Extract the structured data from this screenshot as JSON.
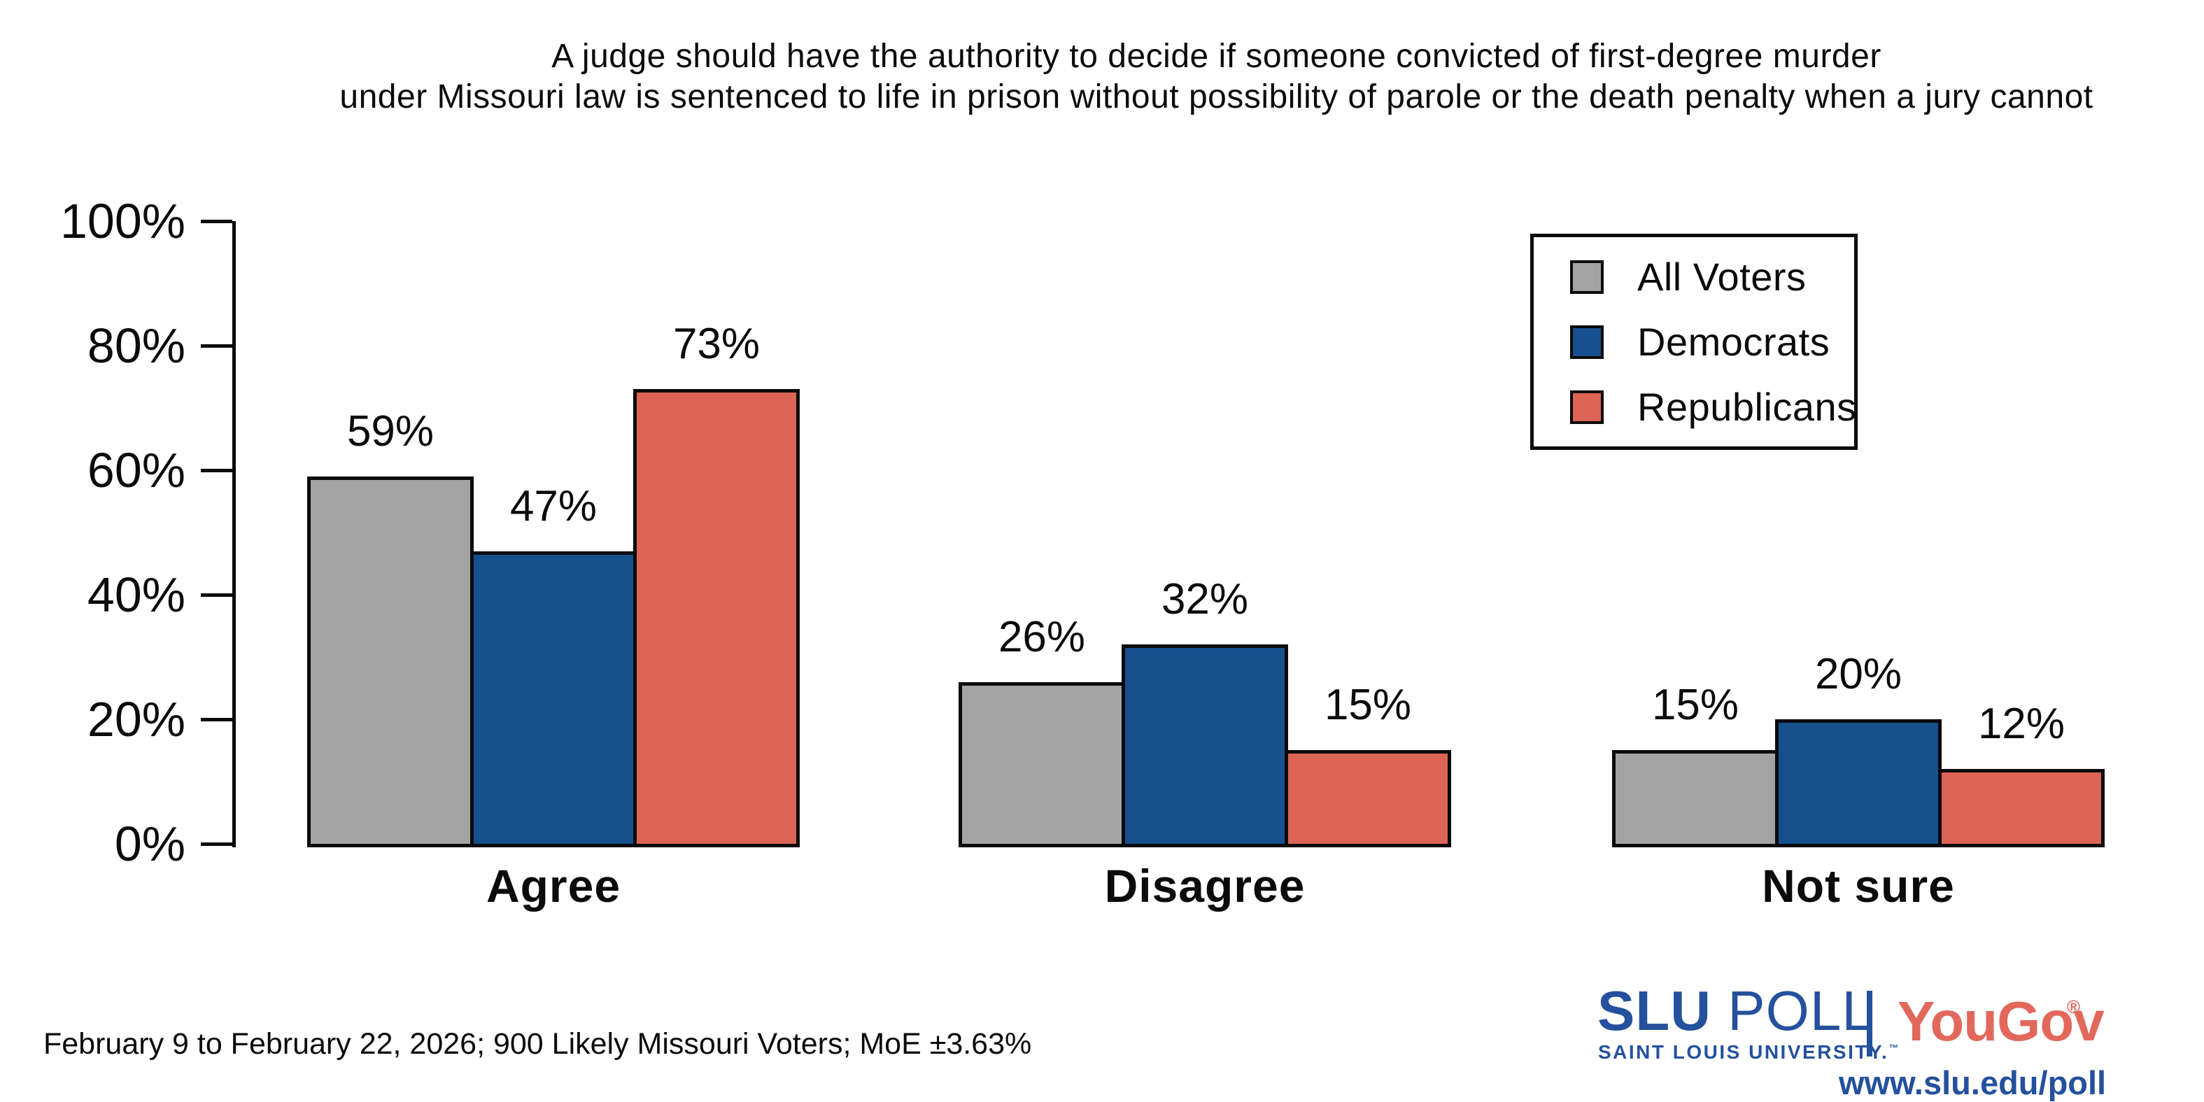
{
  "title": {
    "line1": "A judge should have the authority to decide if someone convicted of first-degree murder",
    "line2": "under Missouri law is sentenced to life in prison without possibility of parole or the death penalty when a jury cannot"
  },
  "chart_data": {
    "type": "bar",
    "title": "A judge should have the authority to decide if someone convicted of first-degree murder under Missouri law is sentenced to life in prison without possibility of parole or the death penalty when a jury cannot",
    "categories": [
      "Agree",
      "Disagree",
      "Not sure"
    ],
    "series": [
      {
        "name": "All Voters",
        "color": "#a3a3a3",
        "values": [
          59,
          26,
          15
        ]
      },
      {
        "name": "Democrats",
        "color": "#17508f",
        "values": [
          47,
          32,
          20
        ]
      },
      {
        "name": "Republicans",
        "color": "#db6455",
        "values": [
          73,
          15,
          12
        ]
      }
    ],
    "value_labels": [
      [
        "59%",
        "26%",
        "15%"
      ],
      [
        "47%",
        "32%",
        "20%"
      ],
      [
        "73%",
        "15%",
        "12%"
      ]
    ],
    "xlabel": "",
    "ylabel": "",
    "ylim": [
      0,
      100
    ],
    "ytick_labels": [
      "0%",
      "20%",
      "40%",
      "60%",
      "80%",
      "100%"
    ],
    "grid": false,
    "legend_position": "top-right",
    "bar_outline_color": "#0b0b0b"
  },
  "legend": {
    "items": [
      {
        "label": "All Voters",
        "color": "#a3a3a3"
      },
      {
        "label": "Democrats",
        "color": "#17508f"
      },
      {
        "label": "Republicans",
        "color": "#db6455"
      }
    ]
  },
  "footer": {
    "note": "February 9 to February 22, 2026; 900 Likely Missouri Voters; MoE ±3.63%"
  },
  "branding": {
    "slu": "SLU",
    "poll": "POLL",
    "slu_sub": "SAINT LOUIS UNIVERSITY.",
    "slu_sub_mark": "™",
    "yougov": "YouGov",
    "yougov_mark": "®",
    "url": "www.slu.edu/poll",
    "slu_blue": "#24519d",
    "yougov_red": "#e3685c"
  }
}
